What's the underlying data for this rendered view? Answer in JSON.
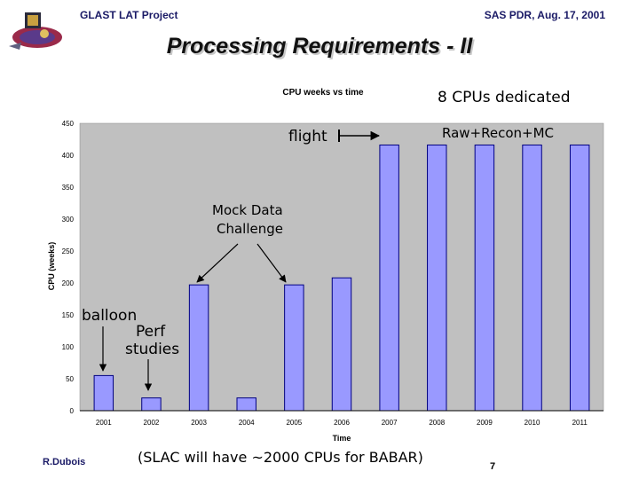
{
  "header": {
    "project": "GLAST LAT Project",
    "event": "SAS PDR, Aug. 17, 2001"
  },
  "slide": {
    "title": "Processing Requirements -  II",
    "author": "R.Dubois",
    "page_number": "7",
    "footer_note": "(SLAC will have ~2000 CPUs for BABAR)"
  },
  "annotations": {
    "cpus_dedicated": "8 CPUs dedicated",
    "raw_recon_mc": "Raw+Recon+MC",
    "flight": "flight",
    "mock_data_line1": "Mock Data",
    "mock_data_line2": "Challenge",
    "balloon": "balloon",
    "perf_line1": "Perf",
    "perf_line2": "studies"
  },
  "colors": {
    "bar_fill": "#9999ff",
    "bar_stroke": "#000080",
    "plot_background": "#c0c0c0"
  },
  "chart_data": {
    "type": "bar",
    "title": "CPU weeks vs time",
    "xlabel": "Time",
    "ylabel": "CPU (weeks)",
    "categories": [
      "2001",
      "2002",
      "2003",
      "2004",
      "2005",
      "2006",
      "2007",
      "2008",
      "2009",
      "2010",
      "2011"
    ],
    "values": [
      55,
      20,
      197,
      20,
      197,
      208,
      416,
      416,
      416,
      416,
      416
    ],
    "ylim": [
      0,
      450
    ],
    "yticks": [
      0,
      50,
      100,
      150,
      200,
      250,
      300,
      350,
      400,
      450
    ],
    "grid": false,
    "legend": "none"
  }
}
